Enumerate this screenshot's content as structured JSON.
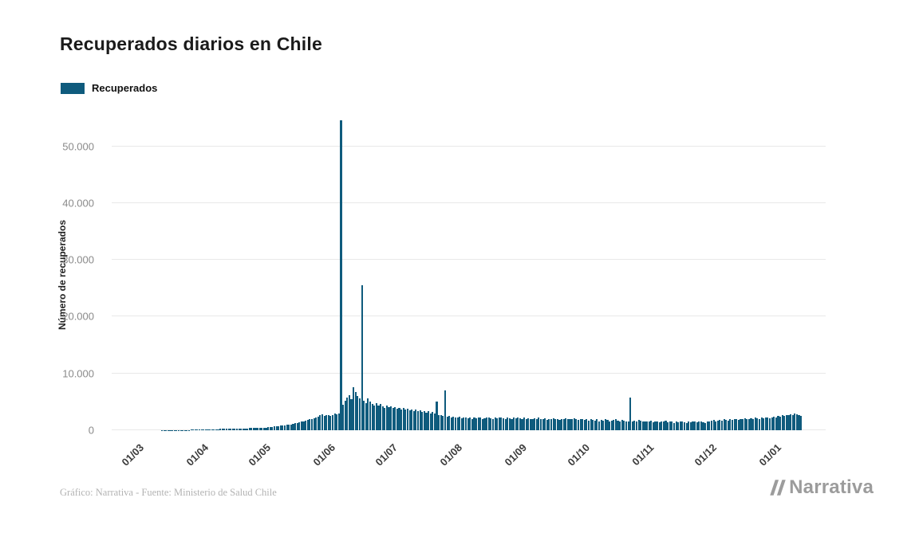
{
  "header": {
    "title": "Recuperados diarios en Chile"
  },
  "legend": {
    "label": "Recuperados",
    "swatch_color": "#0f5b7d"
  },
  "footer": {
    "credit": "Gráfico: Narrativa - Fuente: Ministerio de Salud Chile"
  },
  "brand": {
    "name": "Narrativa",
    "color": "#9c9c9c"
  },
  "chart_data": {
    "type": "bar",
    "title": "Recuperados diarios en Chile",
    "xlabel": "",
    "ylabel": "Número de recuperados",
    "legend_entries": [
      "Recuperados"
    ],
    "legend_position": "top-left",
    "bar_color": "#0f5b7d",
    "grid": "horizontal",
    "background": "#ffffff",
    "ylim": [
      0,
      55000
    ],
    "y_ticks": [
      {
        "label": "0",
        "value": 0
      },
      {
        "label": "10.000",
        "value": 10000
      },
      {
        "label": "20.000",
        "value": 20000
      },
      {
        "label": "30.000",
        "value": 30000
      },
      {
        "label": "40.000",
        "value": 40000
      },
      {
        "label": "50.000",
        "value": 50000
      }
    ],
    "x_unit": "day",
    "x_tick_format": "dd/mm",
    "x_ticks": [
      {
        "label": "01/03",
        "index": 11
      },
      {
        "label": "01/04",
        "index": 42
      },
      {
        "label": "01/05",
        "index": 72
      },
      {
        "label": "01/06",
        "index": 103
      },
      {
        "label": "01/07",
        "index": 133
      },
      {
        "label": "01/08",
        "index": 164
      },
      {
        "label": "01/09",
        "index": 195
      },
      {
        "label": "01/10",
        "index": 225
      },
      {
        "label": "01/11",
        "index": 256
      },
      {
        "label": "01/12",
        "index": 286
      },
      {
        "label": "01/01",
        "index": 317
      }
    ],
    "values": [
      0,
      0,
      0,
      0,
      0,
      0,
      0,
      0,
      0,
      0,
      0,
      1,
      2,
      2,
      3,
      3,
      4,
      5,
      6,
      7,
      8,
      9,
      10,
      12,
      14,
      16,
      18,
      20,
      25,
      30,
      35,
      40,
      45,
      50,
      55,
      60,
      70,
      80,
      90,
      100,
      110,
      120,
      130,
      140,
      150,
      160,
      170,
      180,
      190,
      200,
      210,
      220,
      230,
      240,
      250,
      260,
      270,
      280,
      290,
      300,
      310,
      320,
      330,
      340,
      350,
      360,
      370,
      380,
      390,
      400,
      410,
      420,
      450,
      480,
      520,
      560,
      600,
      650,
      700,
      750,
      800,
      850,
      900,
      950,
      1000,
      1050,
      1100,
      1200,
      1300,
      1400,
      1500,
      1600,
      1700,
      1800,
      1900,
      2000,
      2100,
      2200,
      2400,
      2600,
      2800,
      2500,
      2700,
      2600,
      2500,
      2700,
      2900,
      2800,
      3000,
      54600,
      4500,
      5200,
      5800,
      6200,
      5500,
      7600,
      6800,
      6000,
      5600,
      25600,
      5200,
      4800,
      5600,
      5000,
      4600,
      4400,
      4800,
      4300,
      4600,
      4200,
      3900,
      4300,
      4100,
      4200,
      3900,
      4100,
      3800,
      4000,
      3700,
      3900,
      3600,
      3800,
      3500,
      3700,
      3400,
      3600,
      3300,
      3500,
      3200,
      3400,
      3100,
      3300,
      3000,
      3200,
      2900,
      5000,
      2700,
      2600,
      2500,
      7000,
      2400,
      2500,
      2300,
      2400,
      2300,
      2200,
      2400,
      2100,
      2300,
      2200,
      2100,
      2300,
      2000,
      2200,
      2100,
      2300,
      2200,
      2000,
      2100,
      2200,
      2300,
      2100,
      2000,
      2200,
      2100,
      2300,
      2200,
      2100,
      2000,
      2200,
      2100,
      2000,
      2200,
      2100,
      2300,
      2100,
      2000,
      2200,
      1900,
      2100,
      2000,
      1900,
      2100,
      2000,
      2200,
      1900,
      2000,
      2100,
      1800,
      2000,
      1900,
      2100,
      2000,
      1900,
      1800,
      2000,
      1900,
      2100,
      2000,
      1900,
      2000,
      2100,
      1900,
      1800,
      2000,
      1900,
      1800,
      2000,
      1700,
      1900,
      1800,
      1700,
      1900,
      1600,
      1800,
      1700,
      1900,
      1800,
      1600,
      1700,
      1800,
      1900,
      1700,
      1600,
      1800,
      1700,
      1500,
      1600,
      5700,
      1500,
      1700,
      1600,
      1800,
      1700,
      1500,
      1600,
      1600,
      1500,
      1700,
      1400,
      1600,
      1500,
      1400,
      1600,
      1500,
      1700,
      1400,
      1500,
      1600,
      1300,
      1500,
      1400,
      1600,
      1500,
      1400,
      1300,
      1500,
      1400,
      1600,
      1500,
      1400,
      1500,
      1600,
      1400,
      1300,
      1500,
      1600,
      1700,
      1800,
      1600,
      1700,
      1800,
      1700,
      1900,
      1800,
      1700,
      1900,
      1800,
      2000,
      1900,
      1800,
      2000,
      1900,
      2100,
      2000,
      1900,
      2100,
      2000,
      2200,
      2100,
      2000,
      2200,
      2100,
      2300,
      2200,
      2100,
      2300,
      2400,
      2300,
      2500,
      2400,
      2600,
      2500,
      2700,
      2600,
      2800,
      2700,
      2900,
      2800,
      2600,
      2500
    ]
  }
}
